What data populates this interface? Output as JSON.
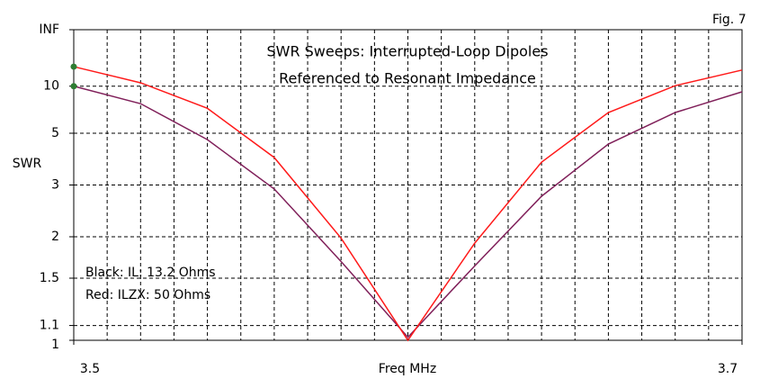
{
  "chart_data": {
    "type": "line",
    "figure_label": "Fig. 7",
    "title": [
      "SWR Sweeps: Interrupted-Loop Dipoles",
      "Referenced to Resonant Impedance"
    ],
    "xlabel": "Freq MHz",
    "ylabel": "SWR",
    "annotations": [
      "Black: IL: 13.2 Ohms",
      "Red: ILZX: 50 Ohms"
    ],
    "yscale": "reflection",
    "x": [
      3.5,
      3.52,
      3.54,
      3.56,
      3.58,
      3.6,
      3.62,
      3.64,
      3.66,
      3.68,
      3.7
    ],
    "series": [
      {
        "color": "#80205a",
        "marker_color": "#2e7d32",
        "values": [
          10,
          7.4,
          4.65,
          2.9,
          1.68,
          1.02,
          1.63,
          2.73,
          4.43,
          6.5,
          9.0
        ]
      },
      {
        "color": "#ff1a1a",
        "marker_color": "#2e7d32",
        "values": [
          15.8,
          10.7,
          6.9,
          3.86,
          1.98,
          1.0,
          1.91,
          3.69,
          6.5,
          10.1,
          14.4
        ]
      }
    ],
    "xlim": [
      3.5,
      3.7
    ],
    "xticks": [
      3.5,
      3.7
    ],
    "xminor": [
      3.51,
      3.52,
      3.53,
      3.54,
      3.55,
      3.56,
      3.57,
      3.58,
      3.59,
      3.6,
      3.61,
      3.62,
      3.63,
      3.64,
      3.65,
      3.66,
      3.67,
      3.68,
      3.69
    ],
    "ylim": [
      1,
      null
    ],
    "yticks": [
      1,
      1.1,
      1.5,
      2,
      3,
      5,
      10,
      {
        "value": null,
        "label": "INF"
      }
    ],
    "grid": true
  }
}
